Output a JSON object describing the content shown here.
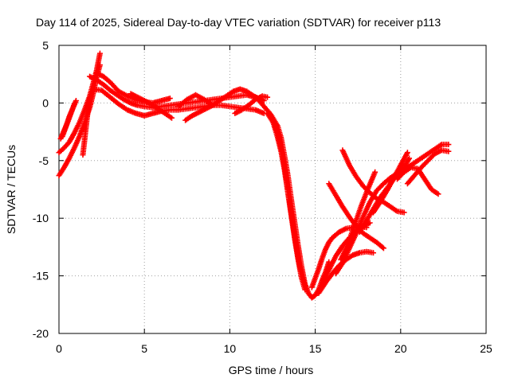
{
  "chart_data": {
    "type": "scatter",
    "title": "Day 114 of 2025, Sidereal Day-to-day VTEC variation (SDTVAR) for receiver p113",
    "xlabel": "GPS time / hours",
    "ylabel": "SDTVAR / TECUs",
    "xlim": [
      0,
      25
    ],
    "ylim": [
      -20,
      5
    ],
    "xticks": [
      0,
      5,
      10,
      15,
      20,
      25
    ],
    "yticks": [
      5,
      0,
      -5,
      -10,
      -15,
      -20
    ],
    "xtick_labels": [
      "0",
      "5",
      "10",
      "15",
      "20",
      "25"
    ],
    "ytick_labels": [
      "5",
      "0",
      "-5",
      "-10",
      "-15",
      "-20"
    ],
    "grid": true,
    "legend": "none",
    "marker": "+",
    "color": "#ff0000",
    "series": [
      {
        "points": [
          [
            0.0,
            -4.3
          ],
          [
            0.3,
            -3.9
          ],
          [
            0.6,
            -3.4
          ],
          [
            0.9,
            -2.6
          ],
          [
            1.2,
            -1.7
          ],
          [
            1.5,
            -0.6
          ],
          [
            1.8,
            0.6
          ],
          [
            2.0,
            1.7
          ],
          [
            2.2,
            2.8
          ],
          [
            2.4,
            4.3
          ]
        ]
      },
      {
        "points": [
          [
            0.0,
            -6.3
          ],
          [
            0.3,
            -5.6
          ],
          [
            0.6,
            -4.8
          ],
          [
            0.9,
            -3.9
          ],
          [
            1.2,
            -2.9
          ],
          [
            1.5,
            -1.7
          ],
          [
            1.8,
            -0.4
          ],
          [
            2.0,
            0.8
          ],
          [
            2.2,
            2.2
          ],
          [
            2.4,
            3.3
          ]
        ]
      },
      {
        "points": [
          [
            0.1,
            -3.1
          ],
          [
            0.3,
            -2.4
          ],
          [
            0.5,
            -1.7
          ],
          [
            0.7,
            -0.9
          ],
          [
            0.9,
            -0.1
          ]
        ]
      },
      {
        "points": [
          [
            0.2,
            -2.9
          ],
          [
            0.4,
            -2.1
          ],
          [
            0.6,
            -1.2
          ],
          [
            0.8,
            -0.5
          ],
          [
            1.0,
            0.2
          ]
        ]
      },
      {
        "points": [
          [
            1.4,
            -4.5
          ],
          [
            1.5,
            -3.2
          ],
          [
            1.6,
            -1.9
          ],
          [
            1.7,
            -0.6
          ],
          [
            1.8,
            0.4
          ]
        ]
      },
      {
        "points": [
          [
            1.8,
            2.3
          ],
          [
            2.2,
            2.0
          ],
          [
            2.6,
            1.6
          ],
          [
            3.0,
            1.1
          ],
          [
            3.4,
            0.7
          ],
          [
            3.8,
            0.3
          ],
          [
            4.2,
            0.0
          ],
          [
            4.6,
            -0.2
          ],
          [
            5.0,
            -0.3
          ],
          [
            5.5,
            -0.4
          ],
          [
            6.0,
            -0.3
          ],
          [
            6.5,
            -0.2
          ],
          [
            7.0,
            -0.1
          ],
          [
            7.5,
            0.0
          ],
          [
            8.0,
            0.1
          ],
          [
            8.5,
            0.2
          ],
          [
            9.0,
            0.3
          ],
          [
            9.5,
            0.4
          ],
          [
            10.0,
            0.5
          ],
          [
            10.5,
            0.6
          ],
          [
            11.0,
            0.7
          ],
          [
            11.5,
            0.5
          ],
          [
            12.0,
            0.2
          ]
        ]
      },
      {
        "points": [
          [
            2.0,
            1.2
          ],
          [
            2.5,
            1.1
          ],
          [
            3.0,
            0.5
          ],
          [
            3.5,
            -0.1
          ],
          [
            4.0,
            -0.6
          ],
          [
            4.5,
            -0.9
          ],
          [
            5.0,
            -1.1
          ],
          [
            5.5,
            -0.9
          ],
          [
            6.0,
            -0.7
          ],
          [
            6.5,
            -0.6
          ],
          [
            7.0,
            -0.6
          ],
          [
            7.5,
            -0.5
          ],
          [
            8.0,
            -0.4
          ],
          [
            8.5,
            -0.3
          ],
          [
            9.0,
            -0.2
          ],
          [
            9.5,
            -0.2
          ],
          [
            10.0,
            -0.3
          ],
          [
            10.5,
            -0.4
          ],
          [
            11.0,
            -0.5
          ],
          [
            11.5,
            -0.6
          ],
          [
            12.0,
            -0.9
          ]
        ]
      },
      {
        "points": [
          [
            2.2,
            2.6
          ],
          [
            2.6,
            2.3
          ],
          [
            3.0,
            1.8
          ],
          [
            3.5,
            1.0
          ],
          [
            4.0,
            0.6
          ],
          [
            4.5,
            0.3
          ],
          [
            5.0,
            0.1
          ],
          [
            5.5,
            0.0
          ],
          [
            6.0,
            0.2
          ],
          [
            6.5,
            0.4
          ]
        ]
      },
      {
        "points": [
          [
            4.2,
            0.8
          ],
          [
            4.6,
            0.5
          ],
          [
            5.0,
            0.2
          ],
          [
            5.4,
            -0.1
          ],
          [
            5.8,
            -0.5
          ],
          [
            6.2,
            -0.9
          ],
          [
            6.6,
            -1.3
          ]
        ]
      },
      {
        "points": [
          [
            7.0,
            -0.3
          ],
          [
            7.5,
            0.3
          ],
          [
            8.0,
            0.7
          ],
          [
            8.5,
            0.3
          ],
          [
            9.0,
            -0.2
          ]
        ]
      },
      {
        "points": [
          [
            7.4,
            -1.5
          ],
          [
            7.8,
            -1.1
          ],
          [
            8.2,
            -0.8
          ],
          [
            8.6,
            -0.5
          ],
          [
            9.0,
            -0.2
          ],
          [
            9.4,
            0.2
          ],
          [
            9.8,
            0.6
          ],
          [
            10.2,
            1.0
          ],
          [
            10.6,
            1.2
          ],
          [
            11.0,
            1.0
          ],
          [
            11.4,
            0.6
          ],
          [
            11.8,
            0.3
          ]
        ]
      },
      {
        "points": [
          [
            10.3,
            -0.9
          ],
          [
            10.7,
            -0.6
          ],
          [
            11.1,
            -0.2
          ],
          [
            11.5,
            0.3
          ],
          [
            11.9,
            0.6
          ],
          [
            12.2,
            0.5
          ]
        ]
      },
      {
        "points": [
          [
            11.6,
            0.4
          ],
          [
            12.0,
            -0.3
          ],
          [
            12.4,
            -1.0
          ],
          [
            12.8,
            -2.0
          ],
          [
            13.0,
            -3.0
          ],
          [
            13.2,
            -4.6
          ],
          [
            13.4,
            -6.3
          ],
          [
            13.6,
            -8.4
          ],
          [
            13.8,
            -10.4
          ],
          [
            14.0,
            -12.4
          ],
          [
            14.2,
            -14.2
          ],
          [
            14.4,
            -15.7
          ],
          [
            14.6,
            -16.5
          ],
          [
            14.8,
            -16.9
          ],
          [
            15.0,
            -16.7
          ],
          [
            15.2,
            -16.2
          ],
          [
            15.4,
            -15.4
          ],
          [
            15.6,
            -14.7
          ],
          [
            15.8,
            -13.8
          ]
        ]
      },
      {
        "points": [
          [
            12.2,
            -0.9
          ],
          [
            12.5,
            -1.6
          ],
          [
            12.8,
            -2.6
          ],
          [
            13.0,
            -3.9
          ],
          [
            13.2,
            -5.6
          ],
          [
            13.4,
            -7.5
          ],
          [
            13.6,
            -9.6
          ],
          [
            13.8,
            -11.6
          ],
          [
            14.0,
            -13.4
          ],
          [
            14.2,
            -14.9
          ],
          [
            14.4,
            -15.9
          ]
        ]
      },
      {
        "points": [
          [
            12.6,
            -2.0
          ],
          [
            12.8,
            -3.0
          ],
          [
            13.0,
            -4.2
          ],
          [
            13.2,
            -5.8
          ],
          [
            13.4,
            -7.8
          ],
          [
            13.6,
            -9.8
          ],
          [
            13.8,
            -11.8
          ],
          [
            14.0,
            -13.6
          ],
          [
            14.2,
            -15.2
          ],
          [
            14.4,
            -16.2
          ]
        ]
      },
      {
        "points": [
          [
            14.8,
            -16.0
          ],
          [
            15.0,
            -15.2
          ],
          [
            15.2,
            -14.4
          ],
          [
            15.4,
            -13.5
          ],
          [
            15.6,
            -12.7
          ],
          [
            15.8,
            -12.1
          ],
          [
            16.0,
            -11.7
          ],
          [
            16.4,
            -11.2
          ],
          [
            16.8,
            -10.9
          ],
          [
            17.2,
            -10.8
          ],
          [
            17.6,
            -10.7
          ],
          [
            18.0,
            -10.8
          ]
        ]
      },
      {
        "points": [
          [
            15.2,
            -16.5
          ],
          [
            15.6,
            -15.6
          ],
          [
            16.0,
            -14.8
          ],
          [
            16.4,
            -14.1
          ],
          [
            16.8,
            -13.6
          ],
          [
            17.2,
            -13.2
          ],
          [
            17.6,
            -13.0
          ],
          [
            18.0,
            -12.9
          ],
          [
            18.4,
            -13.0
          ]
        ]
      },
      {
        "points": [
          [
            15.4,
            -15.8
          ],
          [
            15.8,
            -14.5
          ],
          [
            16.2,
            -13.3
          ],
          [
            16.6,
            -12.4
          ],
          [
            17.0,
            -11.7
          ],
          [
            17.4,
            -11.1
          ],
          [
            17.8,
            -10.7
          ],
          [
            18.2,
            -10.4
          ]
        ]
      },
      {
        "points": [
          [
            16.2,
            -14.8
          ],
          [
            16.6,
            -13.9
          ],
          [
            17.0,
            -12.6
          ],
          [
            17.4,
            -11.3
          ],
          [
            17.8,
            -9.9
          ],
          [
            18.2,
            -8.6
          ],
          [
            18.6,
            -7.6
          ],
          [
            19.0,
            -7.0
          ],
          [
            19.4,
            -6.5
          ],
          [
            19.8,
            -6.1
          ],
          [
            20.2,
            -5.6
          ],
          [
            20.5,
            -4.8
          ]
        ]
      },
      {
        "points": [
          [
            16.5,
            -13.6
          ],
          [
            16.9,
            -12.3
          ],
          [
            17.3,
            -10.6
          ],
          [
            17.7,
            -8.9
          ],
          [
            18.1,
            -7.4
          ],
          [
            18.5,
            -6.0
          ]
        ]
      },
      {
        "points": [
          [
            15.8,
            -7.0
          ],
          [
            16.2,
            -8.0
          ],
          [
            16.6,
            -9.0
          ],
          [
            17.0,
            -9.9
          ],
          [
            17.4,
            -10.7
          ],
          [
            17.8,
            -11.3
          ],
          [
            18.2,
            -11.7
          ],
          [
            18.6,
            -12.1
          ],
          [
            19.0,
            -12.6
          ]
        ]
      },
      {
        "points": [
          [
            16.6,
            -4.1
          ],
          [
            17.0,
            -5.4
          ],
          [
            17.4,
            -6.4
          ],
          [
            17.8,
            -7.2
          ],
          [
            18.2,
            -7.8
          ],
          [
            18.6,
            -8.3
          ],
          [
            19.0,
            -8.6
          ],
          [
            19.4,
            -9.0
          ],
          [
            19.8,
            -9.4
          ],
          [
            20.2,
            -9.5
          ]
        ]
      },
      {
        "points": [
          [
            17.6,
            -11.2
          ],
          [
            18.0,
            -10.2
          ],
          [
            18.4,
            -9.2
          ],
          [
            18.8,
            -8.2
          ],
          [
            19.2,
            -7.4
          ],
          [
            19.6,
            -6.6
          ],
          [
            20.0,
            -6.0
          ],
          [
            20.4,
            -5.6
          ],
          [
            20.8,
            -5.2
          ],
          [
            21.2,
            -4.8
          ],
          [
            21.6,
            -4.4
          ],
          [
            22.0,
            -4.0
          ],
          [
            22.4,
            -3.6
          ],
          [
            22.8,
            -3.6
          ]
        ]
      },
      {
        "points": [
          [
            18.4,
            -9.5
          ],
          [
            18.8,
            -8.6
          ],
          [
            19.2,
            -7.6
          ],
          [
            19.6,
            -6.5
          ],
          [
            20.0,
            -5.4
          ],
          [
            20.4,
            -4.3
          ]
        ]
      },
      {
        "points": [
          [
            19.8,
            -6.6
          ],
          [
            20.2,
            -6.0
          ],
          [
            20.6,
            -5.6
          ],
          [
            21.0,
            -5.7
          ],
          [
            21.4,
            -6.6
          ],
          [
            21.8,
            -7.5
          ],
          [
            22.2,
            -7.9
          ]
        ]
      },
      {
        "points": [
          [
            20.4,
            -7.0
          ],
          [
            20.8,
            -6.3
          ],
          [
            21.2,
            -5.6
          ],
          [
            21.6,
            -5.0
          ],
          [
            22.0,
            -4.4
          ],
          [
            22.4,
            -4.1
          ],
          [
            22.8,
            -4.2
          ]
        ]
      }
    ]
  }
}
